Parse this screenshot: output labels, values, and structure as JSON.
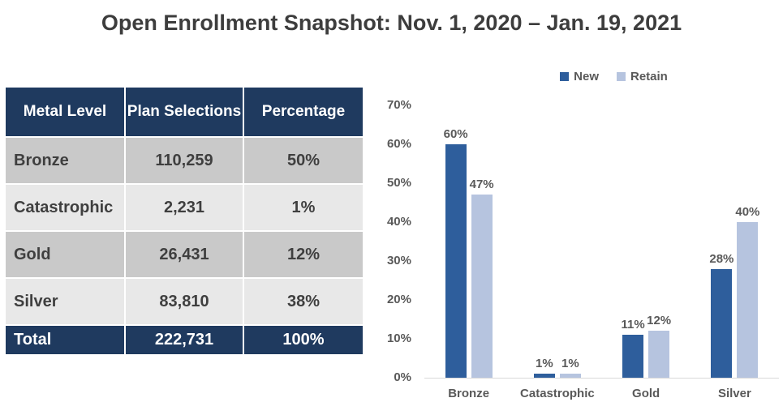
{
  "title": "Open Enrollment Snapshot: Nov. 1, 2020 – Jan. 19, 2021",
  "table": {
    "headers": [
      "Metal Level",
      "Plan Selections",
      "Percentage"
    ],
    "rows": [
      [
        "Bronze",
        "110,259",
        "50%"
      ],
      [
        "Catastrophic",
        "2,231",
        "1%"
      ],
      [
        "Gold",
        "26,431",
        "12%"
      ],
      [
        "Silver",
        "83,810",
        "38%"
      ]
    ],
    "total_row": [
      "Total",
      "222,731",
      "100%"
    ]
  },
  "chart_data": {
    "type": "bar",
    "title": "",
    "categories": [
      "Bronze",
      "Catastrophic",
      "Gold",
      "Silver"
    ],
    "series": [
      {
        "name": "New",
        "color": "#2e5e9c",
        "values": [
          60,
          1,
          11,
          28
        ]
      },
      {
        "name": "Retain",
        "color": "#b6c4df",
        "values": [
          47,
          1,
          12,
          40
        ]
      }
    ],
    "value_suffix": "%",
    "xlabel": "",
    "ylabel": "",
    "ylim": [
      0,
      70
    ],
    "ytick_step": 10,
    "ytick_labels": [
      "0%",
      "10%",
      "20%",
      "30%",
      "40%",
      "50%",
      "60%",
      "70%"
    ],
    "grid": false,
    "legend_position": "top"
  },
  "colors": {
    "header_navy": "#1f3a5f",
    "row_dark_gray": "#c9c9c9",
    "row_light_gray": "#e8e8e8",
    "bar_new_blue": "#2e5e9c",
    "bar_retain_blue": "#b6c4df",
    "table_text": "#3f3f3f",
    "chart_text": "#595959",
    "axis_line": "#d9d9d9"
  }
}
